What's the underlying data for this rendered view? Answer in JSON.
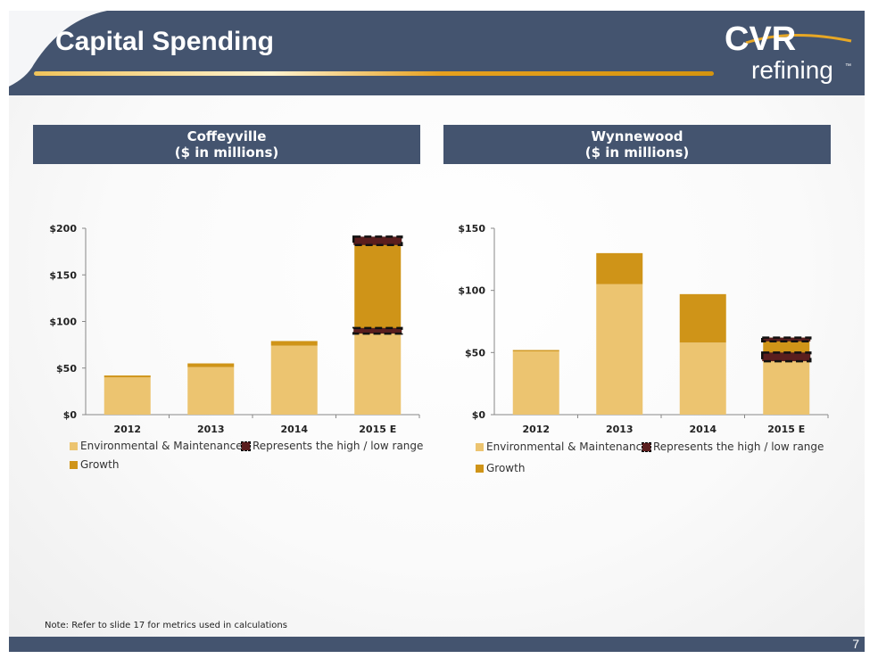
{
  "header": {
    "title": "Capital Spending",
    "logo_text_top": "CVR",
    "logo_text_bottom": "refining",
    "logo_tm": "™"
  },
  "panels": [
    {
      "title": "Coffeyville",
      "subtitle": "($ in millions)"
    },
    {
      "title": "Wynnewood",
      "subtitle": "($ in millions)"
    }
  ],
  "legend": {
    "env": "Environmental & Maintenance",
    "range": "Represents the high / low range",
    "growth": "Growth"
  },
  "colors": {
    "header": "#44546f",
    "env": "#ecc470",
    "growth": "#cf9418",
    "range": "#5a1e1e",
    "accent_line": "#e7a725"
  },
  "note": "Note: Refer to slide 17 for metrics used in calculations",
  "page_number": "7",
  "chart_data": [
    {
      "type": "bar",
      "stacked": true,
      "title": "Coffeyville",
      "subtitle": "($ in millions)",
      "categories": [
        "2012",
        "2013",
        "2014",
        "2015 E"
      ],
      "series": [
        {
          "name": "Environmental & Maintenance",
          "values": [
            40,
            51,
            74,
            87
          ]
        },
        {
          "name": "Growth",
          "values": [
            2,
            4,
            5,
            99
          ]
        }
      ],
      "ranges": [
        {
          "category": "2015 E",
          "low": 87,
          "high": 93
        },
        {
          "category": "2015 E",
          "low": 182,
          "high": 191
        }
      ],
      "y_ticks": [
        "$0",
        "$50",
        "$100",
        "$150",
        "$200"
      ],
      "y_tick_values": [
        0,
        50,
        100,
        150,
        200
      ],
      "ylim": [
        0,
        200
      ],
      "legend_position": "bottom"
    },
    {
      "type": "bar",
      "stacked": true,
      "title": "Wynnewood",
      "subtitle": "($ in millions)",
      "categories": [
        "2012",
        "2013",
        "2014",
        "2015 E"
      ],
      "series": [
        {
          "name": "Environmental & Maintenance",
          "values": [
            51,
            105,
            58,
            43
          ]
        },
        {
          "name": "Growth",
          "values": [
            1,
            25,
            39,
            19
          ]
        }
      ],
      "ranges": [
        {
          "category": "2015 E",
          "low": 43,
          "high": 50
        },
        {
          "category": "2015 E",
          "low": 59,
          "high": 62
        }
      ],
      "y_ticks": [
        "$0",
        "$50",
        "$100",
        "$150"
      ],
      "y_tick_values": [
        0,
        50,
        100,
        150
      ],
      "ylim": [
        0,
        150
      ],
      "legend_position": "bottom"
    }
  ]
}
